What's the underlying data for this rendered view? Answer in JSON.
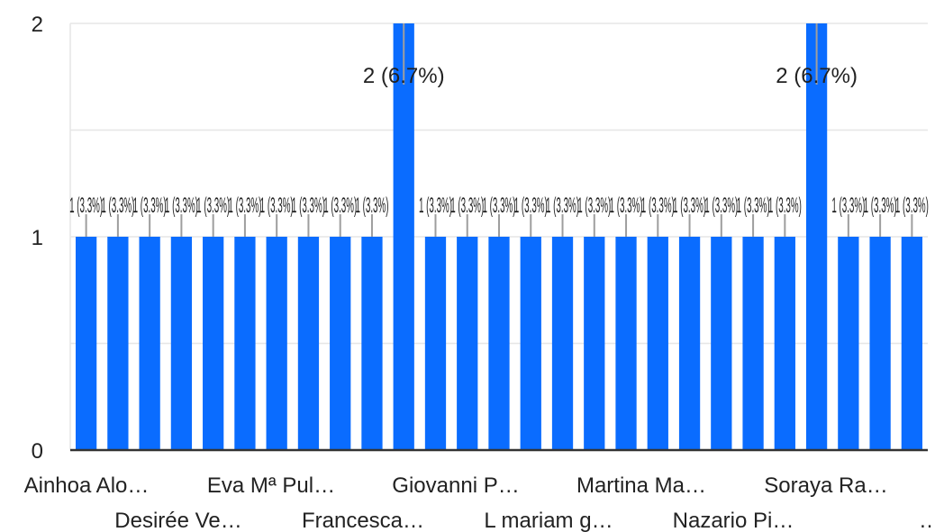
{
  "chart_data": {
    "type": "bar",
    "title": "",
    "xlabel": "",
    "ylabel": "",
    "ylim": [
      0,
      2
    ],
    "y_ticks": [
      "0",
      "1",
      "2"
    ],
    "grid": true,
    "legend": "none",
    "bar_color": "#0a6cff",
    "grid_color": "#e6e6e6",
    "axis_color": "#333333",
    "leader_color": "#9e9e9e",
    "values": [
      1,
      1,
      1,
      1,
      1,
      1,
      1,
      1,
      1,
      1,
      2,
      1,
      1,
      1,
      1,
      1,
      1,
      1,
      1,
      1,
      1,
      1,
      1,
      2,
      1,
      1,
      1
    ],
    "data_labels": [
      "1 (3.3%)",
      "1 (3.3%)",
      "1 (3.3%)",
      "1 (3.3%)",
      "1 (3.3%)",
      "1 (3.3%)",
      "1 (3.3%)",
      "1 (3.3%)",
      "1 (3.3%)",
      "1 (3.3%)",
      "2 (6.7%)",
      "1 (3.3%)",
      "1 (3.3%)",
      "1 (3.3%)",
      "1 (3.3%)",
      "1 (3.3%)",
      "1 (3.3%)",
      "1 (3.3%)",
      "1 (3.3%)",
      "1 (3.3%)",
      "1 (3.3%)",
      "1 (3.3%)",
      "1 (3.3%)",
      "2 (6.7%)",
      "1 (3.3%)",
      "1 (3.3%)",
      "1 (3.3%)"
    ],
    "x_labels_row1": [
      "Ainhoa Alo…",
      "Eva Mª Pul…",
      "Giovanni P…",
      "Martina Ma…",
      "Soraya Ra…"
    ],
    "x_labels_row2": [
      "Desirée Ve…",
      "Francesca…",
      "L mariam g…",
      "Nazario Pi…",
      "…"
    ]
  }
}
